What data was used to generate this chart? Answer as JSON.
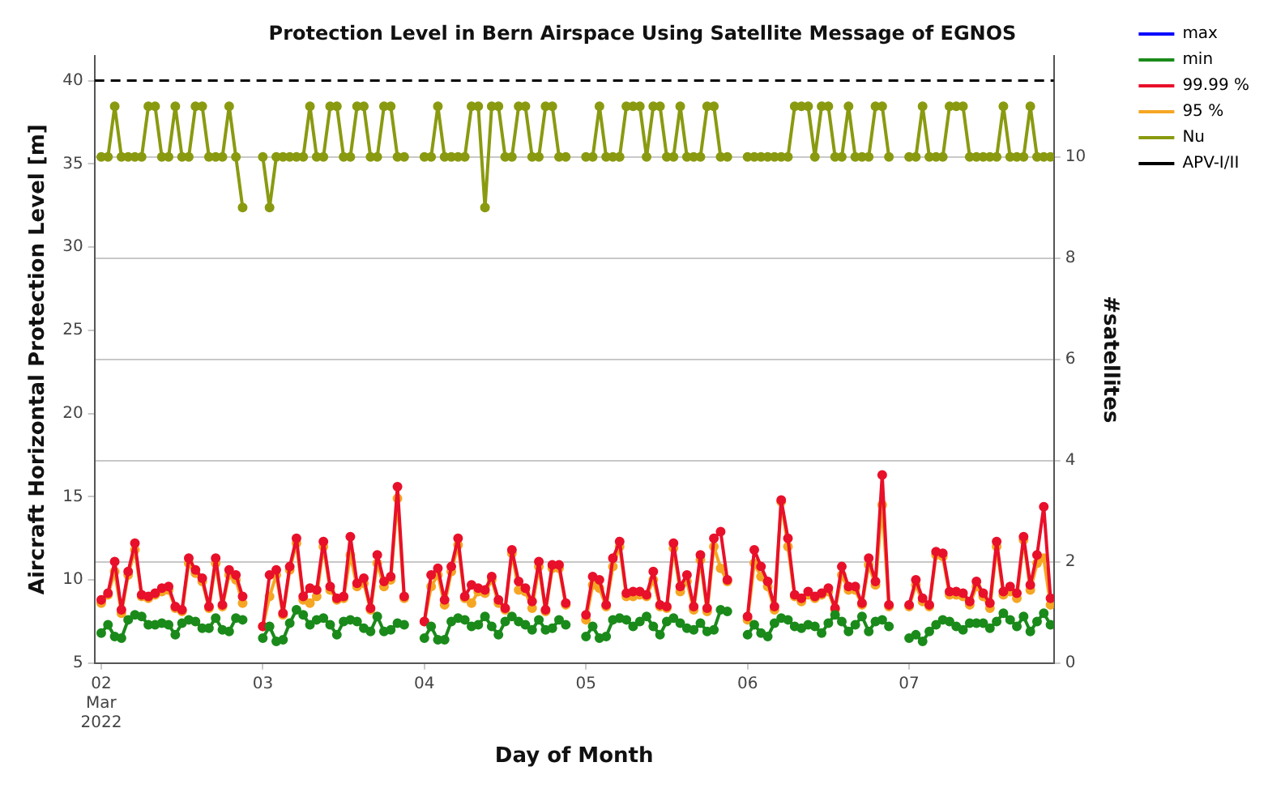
{
  "chart_data": {
    "type": "line",
    "title": "Protection Level in Bern Airspace Using Satellite Message of EGNOS",
    "xlabel": "Day of Month",
    "ylabel": "Aircraft Horizontal Protection Level [m]",
    "y2label": "#satellites",
    "x": [
      "2022-03-02T00:00",
      "2022-03-02T01:00",
      "2022-03-02T02:00",
      "2022-03-02T03:00",
      "2022-03-02T04:00",
      "2022-03-02T05:00",
      "2022-03-02T06:00",
      "2022-03-02T07:00",
      "2022-03-02T08:00",
      "2022-03-02T09:00",
      "2022-03-02T10:00",
      "2022-03-02T11:00",
      "2022-03-02T12:00",
      "2022-03-02T13:00",
      "2022-03-02T14:00",
      "2022-03-02T15:00",
      "2022-03-02T16:00",
      "2022-03-02T17:00",
      "2022-03-02T18:00",
      "2022-03-02T19:00",
      "2022-03-02T20:00",
      "2022-03-02T21:00",
      "2022-03-02T22:30",
      "2022-03-03T00:00",
      "2022-03-03T01:00",
      "2022-03-03T02:00",
      "2022-03-03T03:00",
      "2022-03-03T04:00",
      "2022-03-03T05:00",
      "2022-03-03T06:00",
      "2022-03-03T07:00",
      "2022-03-03T08:00",
      "2022-03-03T09:00",
      "2022-03-03T10:00",
      "2022-03-03T11:00",
      "2022-03-03T12:00",
      "2022-03-03T13:00",
      "2022-03-03T14:00",
      "2022-03-03T15:00",
      "2022-03-03T16:00",
      "2022-03-03T17:00",
      "2022-03-03T18:00",
      "2022-03-03T19:00",
      "2022-03-03T20:00",
      "2022-03-03T21:00",
      "2022-03-03T22:30",
      "2022-03-04T00:00",
      "2022-03-04T01:00",
      "2022-03-04T02:00",
      "2022-03-04T03:00",
      "2022-03-04T04:00",
      "2022-03-04T05:00",
      "2022-03-04T06:00",
      "2022-03-04T07:00",
      "2022-03-04T08:00",
      "2022-03-04T09:00",
      "2022-03-04T10:00",
      "2022-03-04T11:00",
      "2022-03-04T12:00",
      "2022-03-04T13:00",
      "2022-03-04T14:00",
      "2022-03-04T15:00",
      "2022-03-04T16:00",
      "2022-03-04T17:00",
      "2022-03-04T18:00",
      "2022-03-04T19:00",
      "2022-03-04T20:00",
      "2022-03-04T21:00",
      "2022-03-04T22:30",
      "2022-03-05T00:00",
      "2022-03-05T01:00",
      "2022-03-05T02:00",
      "2022-03-05T03:00",
      "2022-03-05T04:00",
      "2022-03-05T05:00",
      "2022-03-05T06:00",
      "2022-03-05T07:00",
      "2022-03-05T08:00",
      "2022-03-05T09:00",
      "2022-03-05T10:00",
      "2022-03-05T11:00",
      "2022-03-05T12:00",
      "2022-03-05T13:00",
      "2022-03-05T14:00",
      "2022-03-05T15:00",
      "2022-03-05T16:00",
      "2022-03-05T17:00",
      "2022-03-05T18:00",
      "2022-03-05T19:00",
      "2022-03-05T20:00",
      "2022-03-05T21:00",
      "2022-03-05T22:30",
      "2022-03-06T00:00",
      "2022-03-06T01:00",
      "2022-03-06T02:00",
      "2022-03-06T03:00",
      "2022-03-06T04:00",
      "2022-03-06T05:00",
      "2022-03-06T06:00",
      "2022-03-06T07:00",
      "2022-03-06T08:00",
      "2022-03-06T09:00",
      "2022-03-06T10:00",
      "2022-03-06T11:00",
      "2022-03-06T12:00",
      "2022-03-06T13:00",
      "2022-03-06T14:00",
      "2022-03-06T15:00",
      "2022-03-06T16:00",
      "2022-03-06T17:00",
      "2022-03-06T18:00",
      "2022-03-06T19:00",
      "2022-03-06T20:00",
      "2022-03-06T21:00",
      "2022-03-06T22:30",
      "2022-03-07T00:00",
      "2022-03-07T01:00",
      "2022-03-07T02:00",
      "2022-03-07T03:00",
      "2022-03-07T04:00",
      "2022-03-07T05:00",
      "2022-03-07T06:00",
      "2022-03-07T07:00",
      "2022-03-07T08:00",
      "2022-03-07T09:00",
      "2022-03-07T10:00",
      "2022-03-07T11:00",
      "2022-03-07T12:00",
      "2022-03-07T13:00",
      "2022-03-07T14:00",
      "2022-03-07T15:00",
      "2022-03-07T16:00",
      "2022-03-07T17:00",
      "2022-03-07T18:00",
      "2022-03-07T19:00",
      "2022-03-07T20:00",
      "2022-03-07T21:00"
    ],
    "series": [
      {
        "name": "max",
        "color": "#0000ff",
        "values": [
          null,
          null,
          null,
          null,
          null,
          null,
          null,
          null,
          null,
          null,
          null,
          null,
          null,
          null,
          null,
          null,
          null,
          null,
          null,
          null,
          null,
          null,
          null,
          null,
          null,
          null,
          null,
          null,
          null,
          null,
          null,
          null,
          null,
          null,
          null,
          null,
          null,
          null,
          null,
          null,
          null,
          null,
          null,
          null,
          null,
          null,
          null,
          null,
          null,
          null,
          null,
          null,
          null,
          null,
          null,
          null,
          null,
          null,
          null,
          null,
          null,
          null,
          null,
          null,
          null,
          null,
          null,
          null,
          null,
          null,
          null,
          null,
          null,
          null,
          null,
          null,
          null,
          null,
          null,
          null,
          null,
          null,
          null,
          null,
          null,
          null,
          null,
          null,
          null,
          null,
          null,
          null,
          null,
          null,
          null,
          null,
          null,
          null,
          null,
          null,
          null,
          null,
          null,
          null,
          null,
          null,
          null,
          null,
          null,
          null,
          null,
          null,
          null,
          null,
          null,
          null,
          null,
          null,
          null,
          null,
          null,
          null,
          null,
          null,
          null,
          null,
          null,
          null,
          null,
          null,
          null,
          null,
          null,
          null,
          null,
          null,
          null
        ]
      },
      {
        "name": "min",
        "color": "#1a8a1a",
        "values": [
          6.8,
          7.3,
          6.6,
          6.5,
          7.6,
          7.9,
          7.8,
          7.3,
          7.3,
          7.4,
          7.3,
          6.7,
          7.4,
          7.6,
          7.5,
          7.1,
          7.1,
          7.7,
          7.0,
          6.9,
          7.7,
          7.6,
          null,
          6.5,
          7.2,
          6.3,
          6.4,
          7.4,
          8.2,
          7.9,
          7.3,
          7.6,
          7.7,
          7.3,
          6.7,
          7.5,
          7.6,
          7.5,
          7.1,
          6.9,
          7.8,
          6.9,
          7.0,
          7.4,
          7.3,
          null,
          6.5,
          7.2,
          6.4,
          6.4,
          7.5,
          7.7,
          7.6,
          7.2,
          7.3,
          7.8,
          7.2,
          6.7,
          7.5,
          7.8,
          7.5,
          7.3,
          7.0,
          7.6,
          7.0,
          7.1,
          7.6,
          7.3,
          null,
          6.6,
          7.2,
          6.5,
          6.6,
          7.6,
          7.7,
          7.6,
          7.2,
          7.5,
          7.8,
          7.2,
          6.7,
          7.5,
          7.7,
          7.4,
          7.1,
          7.0,
          7.4,
          6.9,
          7.0,
          8.2,
          8.1,
          null,
          6.7,
          7.3,
          6.8,
          6.6,
          7.4,
          7.7,
          7.6,
          7.2,
          7.1,
          7.3,
          7.2,
          6.8,
          7.4,
          7.9,
          7.5,
          6.9,
          7.3,
          7.8,
          6.9,
          7.5,
          7.6,
          7.2,
          null,
          6.5,
          6.7,
          6.3,
          6.9,
          7.3,
          7.6,
          7.5,
          7.2,
          7.0,
          7.4,
          7.4,
          7.4,
          7.1,
          7.5,
          8.0,
          7.6,
          7.2,
          7.8,
          6.9,
          7.5,
          8.0,
          7.3
        ]
      },
      {
        "name": "99.99 %",
        "color": "#e8102a",
        "values": [
          8.8,
          9.2,
          11.1,
          8.2,
          10.5,
          12.2,
          9.1,
          9.0,
          9.2,
          9.5,
          9.6,
          8.4,
          8.2,
          11.3,
          10.6,
          10.1,
          8.4,
          11.3,
          8.5,
          10.6,
          10.3,
          9.0,
          null,
          7.2,
          10.3,
          10.6,
          8.0,
          10.8,
          12.5,
          9.0,
          9.5,
          9.4,
          12.3,
          9.6,
          8.9,
          9.0,
          12.6,
          9.8,
          10.1,
          8.3,
          11.5,
          9.9,
          10.2,
          15.6,
          9.0,
          null,
          7.5,
          10.3,
          10.7,
          8.8,
          10.8,
          12.5,
          9.0,
          9.7,
          9.5,
          9.4,
          10.2,
          8.8,
          8.3,
          11.8,
          9.9,
          9.5,
          8.7,
          11.1,
          8.2,
          10.9,
          10.9,
          8.6,
          null,
          7.9,
          10.2,
          10.0,
          8.5,
          11.3,
          12.3,
          9.2,
          9.3,
          9.3,
          9.1,
          10.5,
          8.5,
          8.4,
          12.2,
          9.6,
          10.3,
          8.4,
          11.5,
          8.3,
          12.5,
          12.9,
          10.0,
          null,
          7.8,
          11.8,
          10.8,
          9.9,
          8.4,
          14.8,
          12.5,
          9.1,
          8.9,
          9.3,
          9.0,
          9.2,
          9.5,
          8.3,
          10.8,
          9.6,
          9.6,
          8.6,
          11.3,
          9.9,
          16.3,
          8.5,
          null,
          8.5,
          10.0,
          8.9,
          8.5,
          11.7,
          11.6,
          9.3,
          9.3,
          9.2,
          8.7,
          9.9,
          9.2,
          8.6,
          12.3,
          9.3,
          9.6,
          9.2,
          12.6,
          9.7,
          11.5,
          14.4,
          8.9
        ]
      },
      {
        "name": "95 %",
        "color": "#f5a623",
        "values": [
          8.6,
          9.1,
          10.5,
          8.0,
          10.3,
          11.8,
          9.0,
          8.9,
          9.1,
          9.3,
          9.4,
          8.3,
          8.1,
          11.0,
          10.4,
          9.9,
          8.3,
          11.0,
          8.4,
          10.3,
          10.0,
          8.6,
          null,
          7.2,
          9.0,
          10.3,
          7.9,
          10.6,
          12.2,
          8.8,
          8.6,
          9.0,
          12.0,
          9.4,
          8.8,
          8.9,
          11.5,
          9.6,
          9.8,
          8.2,
          11.0,
          9.6,
          10.0,
          14.9,
          8.9,
          null,
          7.5,
          9.6,
          10.3,
          8.5,
          10.5,
          12.1,
          8.9,
          8.6,
          9.3,
          9.2,
          10.0,
          8.6,
          8.2,
          11.6,
          9.4,
          9.3,
          8.3,
          10.8,
          8.1,
          10.7,
          10.7,
          8.5,
          null,
          7.6,
          9.7,
          9.5,
          8.4,
          10.8,
          12.0,
          9.0,
          9.0,
          9.1,
          9.0,
          10.0,
          8.4,
          8.3,
          11.9,
          9.3,
          9.9,
          8.2,
          11.2,
          8.1,
          12.0,
          10.7,
          9.9,
          null,
          7.6,
          11.0,
          10.2,
          9.6,
          8.2,
          14.7,
          12.0,
          9.0,
          8.7,
          9.1,
          8.9,
          9.1,
          9.3,
          8.2,
          10.3,
          9.4,
          9.4,
          8.5,
          10.9,
          9.7,
          14.5,
          8.4,
          null,
          8.4,
          9.7,
          8.7,
          8.4,
          11.5,
          11.4,
          9.1,
          9.1,
          9.0,
          8.5,
          9.6,
          9.0,
          8.3,
          12.0,
          9.1,
          9.3,
          8.9,
          12.4,
          9.4,
          11.0,
          11.3,
          8.5
        ]
      },
      {
        "name": "Nu",
        "color": "#8a9a10",
        "axis": "y2",
        "values": [
          10,
          10,
          11,
          10,
          10,
          10,
          10,
          11,
          11,
          10,
          10,
          11,
          10,
          10,
          11,
          11,
          10,
          10,
          10,
          11,
          10,
          9,
          null,
          10,
          9,
          10,
          10,
          10,
          10,
          10,
          11,
          10,
          10,
          11,
          11,
          10,
          10,
          11,
          11,
          10,
          10,
          11,
          11,
          10,
          10,
          null,
          10,
          10,
          11,
          10,
          10,
          10,
          10,
          11,
          11,
          9,
          11,
          11,
          10,
          10,
          11,
          11,
          10,
          10,
          11,
          11,
          10,
          10,
          null,
          10,
          10,
          11,
          10,
          10,
          10,
          11,
          11,
          11,
          10,
          11,
          11,
          10,
          10,
          11,
          10,
          10,
          10,
          11,
          11,
          10,
          10,
          null,
          10,
          10,
          10,
          10,
          10,
          10,
          10,
          11,
          11,
          11,
          10,
          11,
          11,
          10,
          10,
          11,
          10,
          10,
          10,
          11,
          11,
          10,
          null,
          10,
          10,
          11,
          10,
          10,
          10,
          11,
          11,
          11,
          10,
          10,
          10,
          10,
          10,
          11,
          10,
          10,
          10,
          11,
          10,
          10,
          10
        ]
      }
    ],
    "ref_lines": [
      {
        "axis": "y",
        "value": 40,
        "label": "APV-I/II",
        "color": "#000000",
        "line_style": "dashed"
      }
    ],
    "xlim": [
      "2022-03-01T23:00",
      "2022-03-07T21:30"
    ],
    "xticks": [
      {
        "value": "2022-03-02",
        "label": "02\nMar\n2022"
      },
      {
        "value": "2022-03-03",
        "label": "03"
      },
      {
        "value": "2022-03-04",
        "label": "04"
      },
      {
        "value": "2022-03-05",
        "label": "05"
      },
      {
        "value": "2022-03-06",
        "label": "06"
      },
      {
        "value": "2022-03-07",
        "label": "07"
      }
    ],
    "ylim": [
      5,
      41.5
    ],
    "yticks": [
      5,
      10,
      15,
      20,
      25,
      30,
      35,
      40
    ],
    "y2lim": [
      0,
      12
    ],
    "y2ticks": [
      0,
      2,
      4,
      6,
      8,
      10
    ],
    "grid": "y",
    "legend": "right",
    "marker": "circle",
    "line_style": "solid"
  }
}
